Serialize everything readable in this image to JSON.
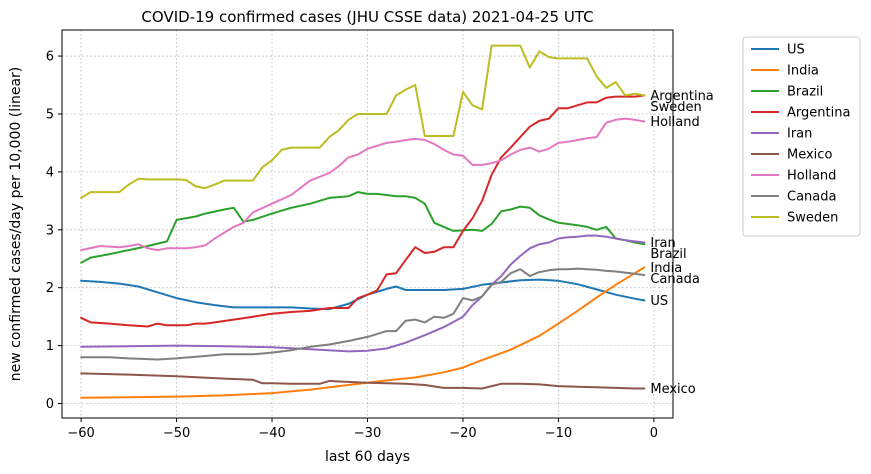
{
  "chart_data": {
    "type": "line",
    "title": "COVID-19 confirmed cases (JHU CSSE data) 2021-04-25 UTC",
    "xlabel": "last 60 days",
    "ylabel": "new confirmed cases/day per 10,000 (linear)",
    "xlim": [
      -62,
      2
    ],
    "ylim": [
      -0.25,
      6.45
    ],
    "xticks": [
      -60,
      -50,
      -40,
      -30,
      -20,
      -10,
      0
    ],
    "yticks": [
      0,
      1,
      2,
      3,
      4,
      5,
      6
    ],
    "grid": true,
    "legend": "outside-right",
    "series": [
      {
        "name": "US",
        "color": "#1f77b4",
        "end_label": "US",
        "x": [
          -60,
          -58,
          -56,
          -54,
          -52,
          -50,
          -48,
          -46,
          -44,
          -42,
          -40,
          -38,
          -36,
          -34,
          -32,
          -30,
          -28,
          -27,
          -26,
          -24,
          -22,
          -20,
          -18,
          -16,
          -14,
          -12,
          -10,
          -8,
          -6,
          -4,
          -2,
          -1
        ],
        "y": [
          2.12,
          2.1,
          2.07,
          2.02,
          1.92,
          1.82,
          1.75,
          1.7,
          1.66,
          1.66,
          1.66,
          1.66,
          1.64,
          1.63,
          1.72,
          1.88,
          1.98,
          2.02,
          1.96,
          1.96,
          1.96,
          1.98,
          2.05,
          2.09,
          2.13,
          2.14,
          2.12,
          2.06,
          1.97,
          1.88,
          1.81,
          1.78
        ]
      },
      {
        "name": "India",
        "color": "#ff7f0e",
        "end_label": "India",
        "x": [
          -60,
          -55,
          -50,
          -45,
          -40,
          -36,
          -32,
          -28,
          -25,
          -22,
          -20,
          -18,
          -15,
          -12,
          -10,
          -8,
          -6,
          -4,
          -2,
          -1
        ],
        "y": [
          0.1,
          0.11,
          0.12,
          0.14,
          0.18,
          0.24,
          0.32,
          0.4,
          0.45,
          0.54,
          0.62,
          0.75,
          0.93,
          1.17,
          1.38,
          1.6,
          1.83,
          2.05,
          2.25,
          2.35
        ]
      },
      {
        "name": "Brazil",
        "color": "#2ca02c",
        "end_label": "Brazil",
        "x": [
          -60,
          -59,
          -57,
          -55,
          -53,
          -51,
          -50,
          -48,
          -47,
          -45,
          -44,
          -43,
          -42,
          -40,
          -38,
          -36,
          -35,
          -34,
          -32,
          -31,
          -30,
          -29,
          -28,
          -27,
          -26,
          -25,
          -24,
          -23,
          -22,
          -21,
          -20,
          -19,
          -18,
          -17,
          -16,
          -15,
          -14,
          -13,
          -12,
          -11,
          -10,
          -9,
          -8,
          -7,
          -6,
          -5,
          -4,
          -3,
          -2,
          -1
        ],
        "y": [
          2.43,
          2.52,
          2.58,
          2.65,
          2.72,
          2.8,
          3.17,
          3.23,
          3.28,
          3.35,
          3.38,
          3.14,
          3.17,
          3.28,
          3.38,
          3.45,
          3.5,
          3.55,
          3.58,
          3.65,
          3.62,
          3.62,
          3.6,
          3.58,
          3.58,
          3.55,
          3.45,
          3.12,
          3.05,
          2.98,
          2.99,
          3.0,
          2.98,
          3.1,
          3.32,
          3.35,
          3.4,
          3.38,
          3.25,
          3.18,
          3.12,
          3.1,
          3.08,
          3.05,
          3.0,
          3.05,
          2.85,
          2.82,
          2.78,
          2.75
        ]
      },
      {
        "name": "Argentina",
        "color": "#d62728",
        "end_label": "Argentina",
        "x": [
          -60,
          -59,
          -57,
          -55,
          -53,
          -52,
          -51,
          -49,
          -48,
          -47,
          -46,
          -44,
          -42,
          -40,
          -38,
          -36,
          -34,
          -33,
          -32,
          -31,
          -30,
          -29,
          -28,
          -27,
          -26,
          -25,
          -24,
          -23,
          -22,
          -21,
          -20,
          -19,
          -18,
          -17,
          -16,
          -15,
          -14,
          -13,
          -12,
          -11,
          -10,
          -9,
          -8,
          -7,
          -6,
          -5,
          -4,
          -3,
          -2,
          -1
        ],
        "y": [
          1.48,
          1.4,
          1.38,
          1.35,
          1.33,
          1.38,
          1.35,
          1.35,
          1.38,
          1.38,
          1.4,
          1.45,
          1.5,
          1.55,
          1.58,
          1.6,
          1.65,
          1.65,
          1.65,
          1.82,
          1.88,
          1.95,
          2.23,
          2.25,
          2.48,
          2.7,
          2.6,
          2.62,
          2.7,
          2.7,
          2.98,
          3.2,
          3.5,
          3.95,
          4.25,
          4.42,
          4.6,
          4.78,
          4.88,
          4.92,
          5.1,
          5.1,
          5.15,
          5.2,
          5.2,
          5.28,
          5.3,
          5.3,
          5.3,
          5.32
        ]
      },
      {
        "name": "Iran",
        "color": "#9467bd",
        "end_label": "Iran",
        "x": [
          -60,
          -55,
          -50,
          -45,
          -40,
          -35,
          -32,
          -30,
          -28,
          -26,
          -24,
          -22,
          -20,
          -19,
          -18,
          -17,
          -16,
          -15,
          -14,
          -13,
          -12,
          -11,
          -10,
          -9,
          -8,
          -7,
          -6,
          -5,
          -4,
          -3,
          -2,
          -1
        ],
        "y": [
          0.98,
          0.99,
          1.0,
          0.99,
          0.97,
          0.93,
          0.9,
          0.91,
          0.95,
          1.05,
          1.18,
          1.32,
          1.5,
          1.7,
          1.85,
          2.05,
          2.2,
          2.4,
          2.55,
          2.68,
          2.75,
          2.78,
          2.85,
          2.87,
          2.88,
          2.9,
          2.9,
          2.88,
          2.85,
          2.82,
          2.8,
          2.78
        ]
      },
      {
        "name": "Mexico",
        "color": "#8c564b",
        "end_label": "Mexico",
        "x": [
          -60,
          -55,
          -50,
          -45,
          -42,
          -41,
          -40,
          -38,
          -35,
          -34,
          -33,
          -30,
          -28,
          -26,
          -24,
          -22,
          -20,
          -18,
          -16,
          -14,
          -12,
          -10,
          -8,
          -6,
          -4,
          -2,
          -1
        ],
        "y": [
          0.52,
          0.5,
          0.47,
          0.43,
          0.41,
          0.35,
          0.35,
          0.34,
          0.34,
          0.39,
          0.38,
          0.36,
          0.35,
          0.34,
          0.32,
          0.27,
          0.27,
          0.26,
          0.34,
          0.34,
          0.33,
          0.3,
          0.29,
          0.28,
          0.27,
          0.26,
          0.26
        ]
      },
      {
        "name": "Holland",
        "color": "#e377c2",
        "end_label": "Holland",
        "x": [
          -60,
          -58,
          -56,
          -55,
          -54,
          -53,
          -52,
          -51,
          -50,
          -49,
          -48,
          -47,
          -46,
          -44,
          -43,
          -42,
          -40,
          -38,
          -36,
          -34,
          -33,
          -32,
          -31,
          -30,
          -29,
          -28,
          -27,
          -26,
          -25,
          -24,
          -23,
          -22,
          -21,
          -20,
          -19,
          -18,
          -17,
          -16,
          -15,
          -14,
          -13,
          -12,
          -11,
          -10,
          -9,
          -8,
          -7,
          -6,
          -5,
          -4,
          -3,
          -2,
          -1
        ],
        "y": [
          2.65,
          2.72,
          2.7,
          2.72,
          2.75,
          2.68,
          2.65,
          2.68,
          2.68,
          2.68,
          2.7,
          2.73,
          2.85,
          3.05,
          3.12,
          3.3,
          3.45,
          3.6,
          3.85,
          3.98,
          4.1,
          4.25,
          4.3,
          4.4,
          4.45,
          4.5,
          4.52,
          4.55,
          4.57,
          4.55,
          4.48,
          4.38,
          4.3,
          4.28,
          4.12,
          4.12,
          4.15,
          4.2,
          4.3,
          4.38,
          4.42,
          4.35,
          4.4,
          4.5,
          4.52,
          4.55,
          4.58,
          4.6,
          4.85,
          4.9,
          4.92,
          4.9,
          4.87
        ]
      },
      {
        "name": "Canada",
        "color": "#7f7f7f",
        "end_label": "Canada",
        "x": [
          -60,
          -57,
          -55,
          -52,
          -50,
          -47,
          -45,
          -42,
          -40,
          -38,
          -36,
          -34,
          -32,
          -30,
          -28,
          -27,
          -26,
          -25,
          -24,
          -23,
          -22,
          -21,
          -20,
          -19,
          -18,
          -17,
          -16,
          -15,
          -14,
          -13,
          -12,
          -11,
          -10,
          -9,
          -8,
          -7,
          -6,
          -5,
          -4,
          -3,
          -2,
          -1
        ],
        "y": [
          0.8,
          0.8,
          0.78,
          0.76,
          0.78,
          0.82,
          0.85,
          0.85,
          0.88,
          0.92,
          0.98,
          1.02,
          1.08,
          1.15,
          1.25,
          1.25,
          1.43,
          1.45,
          1.4,
          1.5,
          1.48,
          1.55,
          1.82,
          1.78,
          1.85,
          2.05,
          2.1,
          2.25,
          2.32,
          2.2,
          2.27,
          2.3,
          2.32,
          2.32,
          2.33,
          2.32,
          2.31,
          2.29,
          2.28,
          2.26,
          2.24,
          2.22
        ]
      },
      {
        "name": "Sweden",
        "color": "#bcbd22",
        "end_label": "Sweden",
        "x": [
          -60,
          -59,
          -58,
          -57,
          -56,
          -55,
          -54,
          -53,
          -52,
          -51,
          -50,
          -49,
          -48,
          -47,
          -46,
          -45,
          -44,
          -43,
          -42,
          -41,
          -40,
          -39,
          -38,
          -37,
          -36,
          -35,
          -34,
          -33,
          -32,
          -31,
          -30,
          -29,
          -28,
          -27,
          -26,
          -25,
          -24,
          -23,
          -22,
          -21,
          -20,
          -19,
          -18,
          -17,
          -16,
          -15,
          -14,
          -13,
          -12,
          -11,
          -10,
          -9,
          -8,
          -7,
          -6,
          -5,
          -4,
          -3,
          -2,
          -1
        ],
        "y": [
          3.55,
          3.65,
          3.65,
          3.65,
          3.65,
          3.78,
          3.88,
          3.87,
          3.87,
          3.87,
          3.87,
          3.86,
          3.75,
          3.72,
          3.78,
          3.85,
          3.85,
          3.85,
          3.85,
          4.08,
          4.2,
          4.38,
          4.42,
          4.42,
          4.42,
          4.42,
          4.6,
          4.72,
          4.9,
          5.0,
          5.0,
          5.0,
          5.0,
          5.32,
          5.42,
          5.5,
          4.62,
          4.62,
          4.62,
          4.62,
          5.38,
          5.15,
          5.08,
          6.18,
          6.18,
          6.18,
          6.18,
          5.8,
          6.08,
          5.98,
          5.96,
          5.96,
          5.96,
          5.96,
          5.65,
          5.45,
          5.55,
          5.32,
          5.35,
          5.32
        ]
      }
    ]
  }
}
